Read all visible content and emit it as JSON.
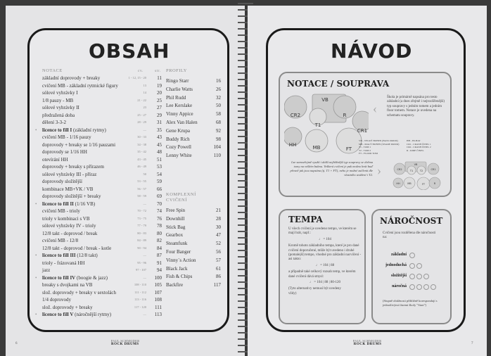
{
  "left": {
    "title": "OBSAH",
    "notace_header": "NOTACE",
    "col_cv": "cv.",
    "col_str": "str.",
    "rows": [
      {
        "t": "základní doprovody + breaky",
        "c": "1 - 12, 15 - 20",
        "p": "11"
      },
      {
        "t": "cvičení MB - základní rytmické figury",
        "c": "13",
        "p": "19"
      },
      {
        "t": "sólové vyhrávky I",
        "c": "14",
        "p": "20"
      },
      {
        "t": "1/8 pauzy - MB",
        "c": "21 - 22",
        "p": "25"
      },
      {
        "t": "sólové vyhrávky II",
        "c": "23",
        "p": "27"
      },
      {
        "t": "předražená doba",
        "c": "25 - 27",
        "p": "29"
      },
      {
        "t": "dělení 3-3-2",
        "c": "28 - 29",
        "p": "31"
      },
      {
        "t": "licence to fill I",
        "s": "(základní rytmy)",
        "c": "—",
        "p": "35",
        "b": true
      },
      {
        "t": "cvičení MB - 1/16 pauzy",
        "c": "30 - 33",
        "p": "43"
      },
      {
        "t": "doprovody + breaky se 1/16 pauzami",
        "c": "34 - 38",
        "p": "45"
      },
      {
        "t": "doprovody se 1/16 HH",
        "c": "35 - 42",
        "p": "48"
      },
      {
        "t": "otevírání HH",
        "c": "43 - 45",
        "p": "51"
      },
      {
        "t": "doprovody + breaky s přírazem",
        "c": "46 - 49",
        "p": "53"
      },
      {
        "t": "sólové vyhrávky III - příraz",
        "c": "50",
        "p": "54"
      },
      {
        "t": "doprovody složitější",
        "c": "53 - 55",
        "p": "59"
      },
      {
        "t": "kombinace MB+VK / VB",
        "c": "56 - 57",
        "p": "66"
      },
      {
        "t": "doprovody složitější + breaky",
        "c": "58 - 59",
        "p": "69"
      },
      {
        "t": "licence to fill II",
        "s": "(1/16 VB)",
        "c": "—",
        "p": "70",
        "b": true
      },
      {
        "t": "cvičení MB - trioly",
        "c": "70 - 72",
        "p": "74"
      },
      {
        "t": "trioly v kombinaci s VB",
        "c": "73 - 75",
        "p": "76"
      },
      {
        "t": "sólové vyhrávky IV - trioly",
        "c": "77 - 79",
        "p": "78"
      },
      {
        "t": "12/8 takt - doprovod / break",
        "c": "80 - 83",
        "p": "80"
      },
      {
        "t": "cvičení MB - 12/8",
        "c": "84 - 89",
        "p": "82"
      },
      {
        "t": "12/8 takt - doprovod / break - kotle",
        "c": "90 - 94",
        "p": "84"
      },
      {
        "t": "licence to fill III",
        "s": "(12/8 takt)",
        "c": "—",
        "p": "87",
        "b": true
      },
      {
        "t": "trioly - frázovaná HH",
        "c": "95 - 96",
        "p": "91"
      },
      {
        "t": "jazz",
        "c": "97 - 107",
        "p": "94"
      },
      {
        "t": "licence to fill IV",
        "s": "(boogie & jazz)",
        "c": "—",
        "p": "100",
        "b": true
      },
      {
        "t": "breaky s dvojkami na VB",
        "c": "108 - 110",
        "p": "105"
      },
      {
        "t": "slož. doprovody + breaky v sextolách",
        "c": "111 - 112",
        "p": "107"
      },
      {
        "t": "1/4 doprovody",
        "c": "113 - 116",
        "p": "108"
      },
      {
        "t": "slož. doprovody + breaky",
        "c": "117 - 120",
        "p": "111"
      },
      {
        "t": "licence to fill V",
        "s": "(náročnější rytmy)",
        "c": "—",
        "p": "113",
        "b": true
      }
    ],
    "profily_header": "PROFILY",
    "profily": [
      {
        "t": "Ringo Starr",
        "p": "16"
      },
      {
        "t": "Charlie Watts",
        "p": "26"
      },
      {
        "t": "Phil Rudd",
        "p": "32"
      },
      {
        "t": "Lee Kerslake",
        "p": "50"
      },
      {
        "t": "Vinny Appice",
        "p": "58"
      },
      {
        "t": "Alex Van Halen",
        "p": "68"
      },
      {
        "t": "Gene Krupa",
        "p": "92"
      },
      {
        "t": "Buddy Rich",
        "p": "98"
      },
      {
        "t": "Cozy Powell",
        "p": "104"
      },
      {
        "t": "Lenny White",
        "p": "110"
      }
    ],
    "komplex_header_1": "KOMPLEXNÍ",
    "komplex_header_2": "CVIČENÍ",
    "komplex": [
      {
        "t": "Free Spin",
        "p": "21"
      },
      {
        "t": "Downhill",
        "p": "28"
      },
      {
        "t": "Stick Bag",
        "p": "30"
      },
      {
        "t": "Gearbox",
        "p": "47"
      },
      {
        "t": "Steamfunk",
        "p": "52"
      },
      {
        "t": "Four Banger",
        "p": "56"
      },
      {
        "t": "Vinny´s Action",
        "p": "57"
      },
      {
        "t": "Black Jack",
        "p": "61"
      },
      {
        "t": "Fish & Chips",
        "p": "86"
      },
      {
        "t": "Backfire",
        "p": "117"
      }
    ],
    "page_number": "6",
    "footer_author": "PAUL SCHNEIDER",
    "footer_title": "ROCK DRUMS"
  },
  "right": {
    "title": "NÁVOD",
    "notace": {
      "title": "NOTACE / SOUPRAVA",
      "drums": [
        "VB",
        "CR2",
        "T1",
        "R",
        "CR1",
        "HH",
        "MB",
        "FT"
      ],
      "small_drums": [
        "VB",
        "CR2",
        "T1",
        "T2",
        "CR1",
        "HH",
        "MB",
        "FT",
        "R"
      ],
      "text1": "Škola je primárně napsána pro testo základní (a dnes zřejmě i nejrozšířenější) typ soupravy s jedním tomem a jedním floor tomem. Notace je uvedena na schematu soupravy.",
      "legend_left": [
        "VB - VELKÝ BUBEN (BASS DRUM)",
        "MB - MALÝ BUBEN (SNARE DRUM)",
        "T1 - TOM 1",
        "T2 - TOM 2",
        "FT - FLOOR TOM"
      ],
      "legend_right": [
        "HH - HI-HAT",
        "CR1 - CRASH ČINEL 1",
        "CR2 - CRASH ČINEL 2",
        "R - RIDE ČINEL"
      ],
      "text2": "Lze samozřejmě využít i další nejběžnější typ soupravy se dvěma tomy na velkém bubnu. Veškerá cvičení je pak možno hrát buď přesně jak jsou napsána (tj. T1 + FT), nebo je možné začlenit dle vlastního uvážení i T2."
    },
    "tempa": {
      "title": "TEMPA",
      "p1": "U všech cvičení je uvedeno tempo, ve kterém se mají hrát, např.:",
      "ex1": "= 104",
      "p2": "Kromě tohoto základního tempa, které je pro dané cvičení doporučené, může být uvedeno i druhé (pomalejší) tempo, vhodné pro základní nacvičení - asi takto:",
      "ex2": "= 104 | 88",
      "p3": "a případně také celkový rozsah temp, ve kterém dané cvičení dává smysl:",
      "ex3": "= 104 | 88 | 80-120",
      "p4": "(Tyto alternativy nemusí být uvedeny vždy)"
    },
    "narocnost": {
      "title": "NÁROČNOST",
      "intro": "Cvičení jsou rozdělena dle náročnosti na:",
      "levels": [
        {
          "label": "základní",
          "count": 1
        },
        {
          "label": "jednoduchá",
          "count": 2
        },
        {
          "label": "složitější",
          "count": 3
        },
        {
          "label": "náročná",
          "count": 4
        }
      ],
      "note": "(Stupně obtížnosti přibližně korespondují s jednotlivými fázemi školy \"Start\")"
    },
    "page_number": "7",
    "footer_author": "PAUL SCHNEIDER",
    "footer_title": "ROCK DRUMS"
  }
}
